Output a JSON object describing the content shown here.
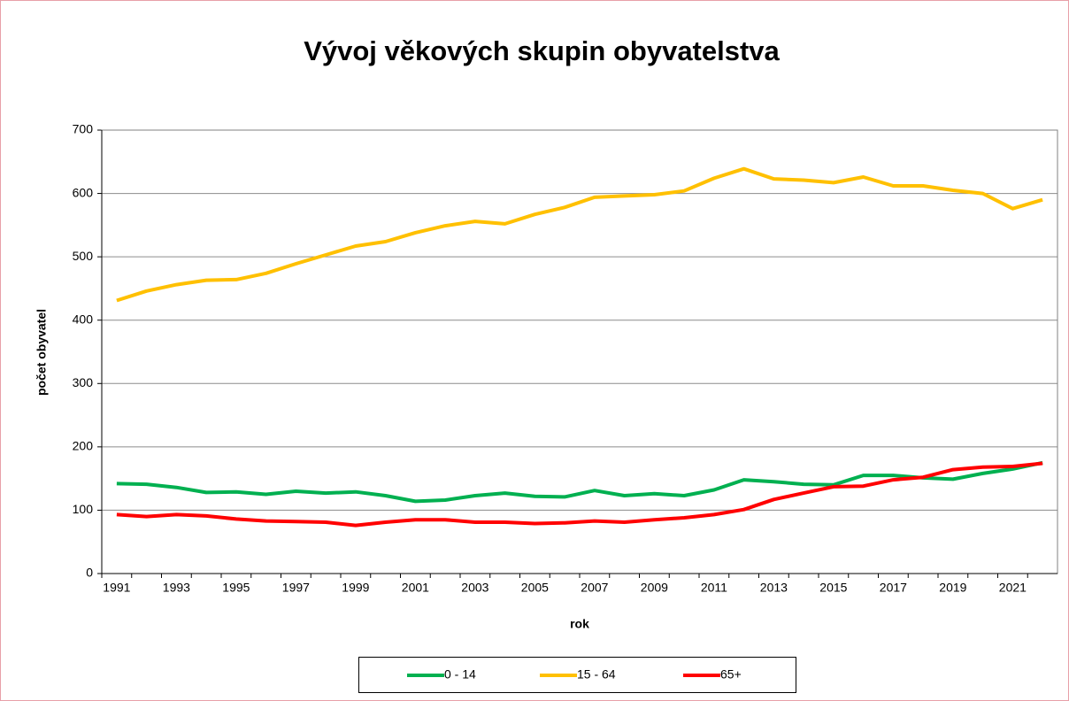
{
  "chart_data": {
    "type": "line",
    "title": "Vývoj věkových skupin obyvatelstva",
    "x_label": "rok",
    "y_label": "počet obyvatel",
    "categories": [
      "1991",
      null,
      "1993",
      null,
      "1995",
      null,
      "1997",
      null,
      "1999",
      null,
      "2001",
      null,
      "2003",
      null,
      "2005",
      null,
      "2007",
      null,
      "2009",
      null,
      "2011",
      null,
      "2013",
      null,
      "2015",
      null,
      "2017",
      null,
      "2019",
      null,
      "2021",
      null
    ],
    "series": [
      {
        "name": "0 - 14",
        "color": "#00b050",
        "values": [
          142,
          141,
          136,
          128,
          129,
          125,
          130,
          127,
          129,
          123,
          114,
          116,
          123,
          127,
          122,
          121,
          131,
          123,
          126,
          123,
          132,
          148,
          145,
          141,
          140,
          155,
          155,
          151,
          149,
          158,
          165,
          175
        ]
      },
      {
        "name": "15 - 64",
        "color": "#ffc000",
        "values": [
          431,
          446,
          456,
          463,
          464,
          474,
          489,
          503,
          517,
          524,
          538,
          549,
          556,
          552,
          567,
          578,
          594,
          596,
          598,
          604,
          624,
          639,
          623,
          621,
          617,
          626,
          612,
          612,
          605,
          600,
          576,
          590
        ]
      },
      {
        "name": "65+",
        "color": "#ff0000",
        "values": [
          93,
          90,
          93,
          91,
          86,
          83,
          82,
          81,
          76,
          81,
          85,
          85,
          81,
          81,
          79,
          80,
          83,
          81,
          85,
          88,
          93,
          101,
          117,
          127,
          137,
          138,
          148,
          152,
          164,
          168,
          169,
          174
        ]
      }
    ],
    "ylim": [
      0,
      700
    ],
    "yticks": [
      0,
      100,
      200,
      300,
      400,
      500,
      600,
      700
    ],
    "grid": true,
    "legend": "bottom"
  }
}
